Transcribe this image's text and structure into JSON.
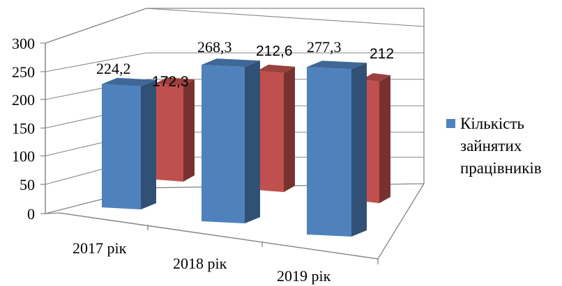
{
  "chart_data": {
    "type": "bar",
    "categories": [
      "2017 рік",
      "2018 рік",
      "2019 рік"
    ],
    "series": [
      {
        "name": "Кількість зайнятих працівників",
        "values": [
          224.2,
          268.3,
          277.3
        ],
        "labels": [
          "224,2",
          "268,3",
          "277,3"
        ],
        "color": "#4f81bd"
      },
      {
        "name": "",
        "values": [
          172.3,
          212.6,
          212
        ],
        "labels": [
          "172,3",
          "212,6",
          "212"
        ],
        "color": "#c0504d"
      }
    ],
    "yticks": [
      "0",
      "50",
      "100",
      "150",
      "200",
      "250",
      "300"
    ],
    "ylim": [
      0,
      300
    ],
    "grid": true,
    "legend": "right",
    "title": "",
    "xlabel": "",
    "ylabel": ""
  }
}
